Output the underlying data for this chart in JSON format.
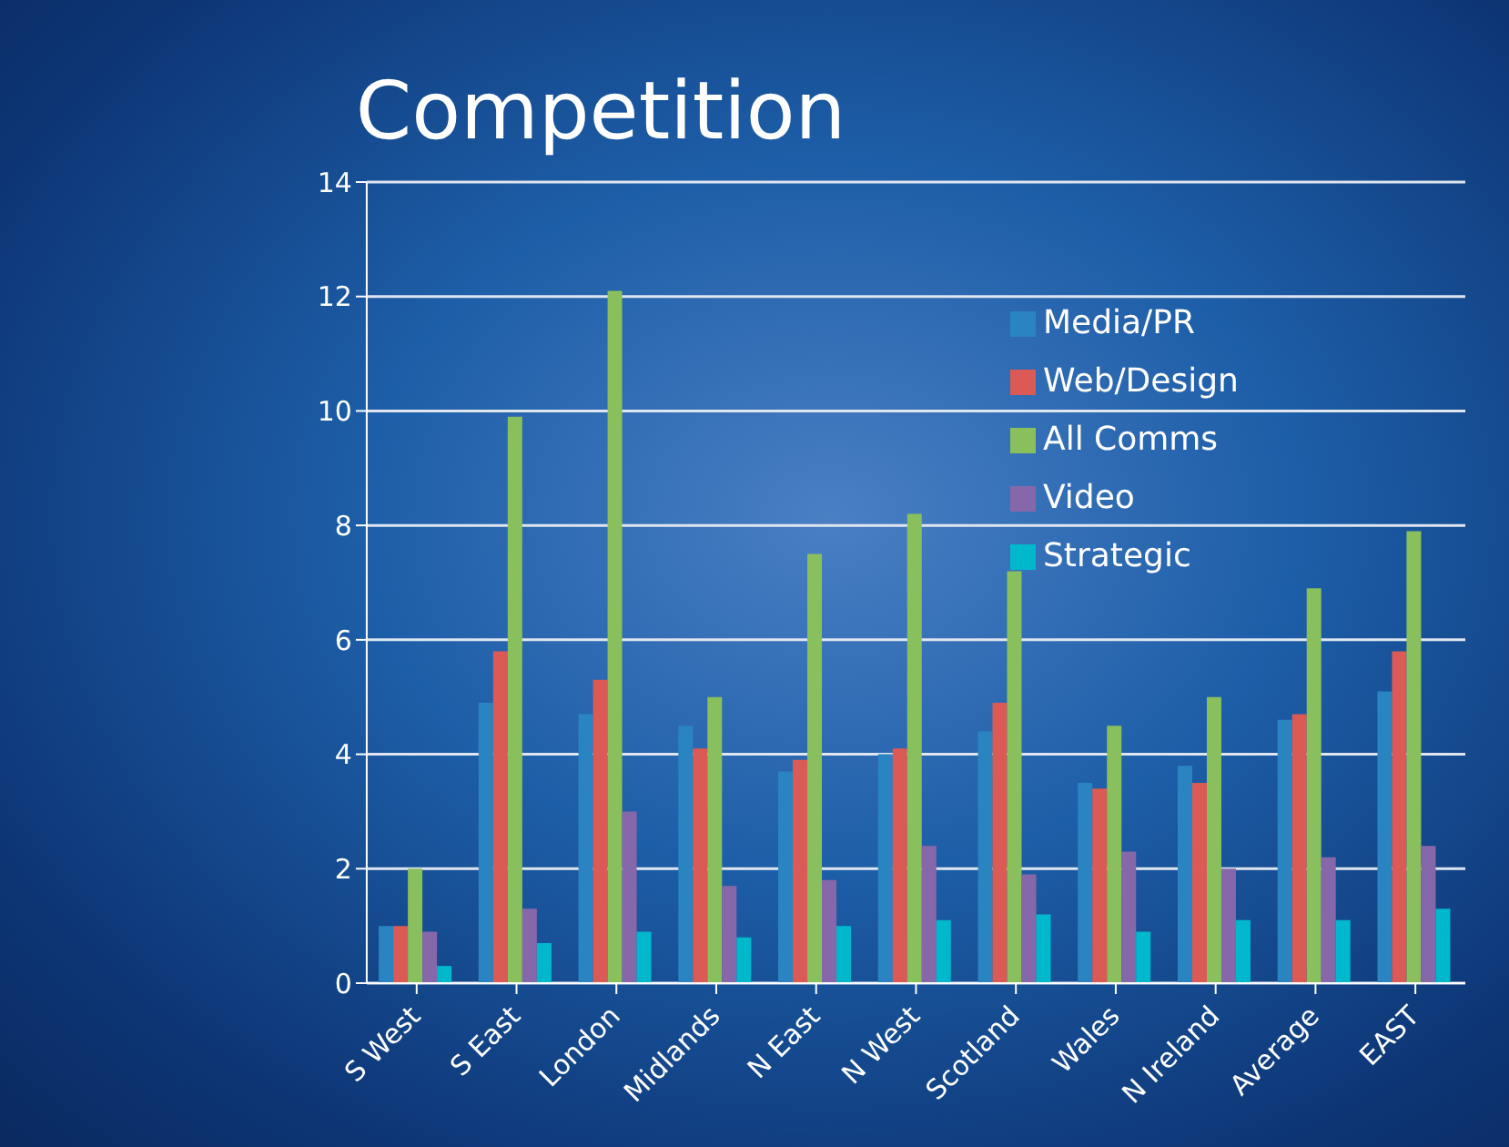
{
  "chart_data": {
    "type": "bar",
    "title": "Competition",
    "categories": [
      "S West",
      "S East",
      "London",
      "Midlands",
      "N East",
      "N West",
      "Scotland",
      "Wales",
      "N Ireland",
      "Average",
      "EAST"
    ],
    "series": [
      {
        "name": "Media/PR",
        "color": "#2a84c2",
        "values": [
          1,
          4.9,
          4.7,
          4.5,
          3.7,
          4.0,
          4.4,
          3.5,
          3.8,
          4.6,
          5.1
        ]
      },
      {
        "name": "Web/Design",
        "color": "#dc5a55",
        "values": [
          1,
          5.8,
          5.3,
          4.1,
          3.9,
          4.1,
          4.9,
          3.4,
          3.5,
          4.7,
          5.8
        ]
      },
      {
        "name": "All Comms",
        "color": "#8abf5e",
        "values": [
          2,
          9.9,
          12.1,
          5.0,
          7.5,
          8.2,
          7.2,
          4.5,
          5.0,
          6.9,
          7.9
        ]
      },
      {
        "name": "Video",
        "color": "#8668aa",
        "values": [
          0.9,
          1.3,
          3.0,
          1.7,
          1.8,
          2.4,
          1.9,
          2.3,
          2.0,
          2.2,
          2.4
        ]
      },
      {
        "name": "Strategic",
        "color": "#00b8cc",
        "values": [
          0.3,
          0.7,
          0.9,
          0.8,
          1.0,
          1.1,
          1.2,
          0.9,
          1.1,
          1.1,
          1.3
        ]
      }
    ],
    "ylim": [
      0,
      14
    ],
    "yticks": [
      0,
      2,
      4,
      6,
      8,
      10,
      12,
      14
    ],
    "grid": "y",
    "legend": "top right"
  }
}
